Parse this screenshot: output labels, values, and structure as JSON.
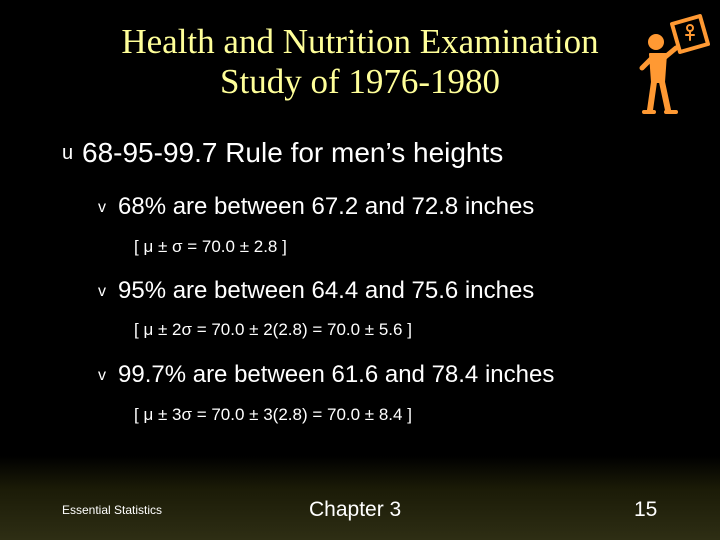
{
  "title": {
    "line1": "Health and Nutrition Examination",
    "line2": "Study of 1976-1980"
  },
  "colors": {
    "background": "#000000",
    "title": "#ffff99",
    "text": "#ffffff",
    "figure": "#ff9933"
  },
  "decoration": {
    "icon": "person-holding-sign-icon"
  },
  "body": {
    "heading": {
      "bullet": "u",
      "text": "68-95-99.7 Rule for men’s heights"
    },
    "items": [
      {
        "bullet": "v",
        "text": "68% are between 67.2 and 72.8 inches",
        "formula": "[ μ ± σ = 70.0 ± 2.8 ]"
      },
      {
        "bullet": "v",
        "text": "95% are between 64.4 and 75.6 inches",
        "formula": "[ μ ± 2σ = 70.0 ± 2(2.8) = 70.0 ± 5.6 ]"
      },
      {
        "bullet": "v",
        "text": "99.7% are between 61.6 and 78.4 inches",
        "formula": "[ μ ± 3σ = 70.0 ± 3(2.8) = 70.0 ± 8.4 ]"
      }
    ]
  },
  "footer": {
    "left": "Essential Statistics",
    "center": "Chapter 3",
    "page": "15"
  }
}
